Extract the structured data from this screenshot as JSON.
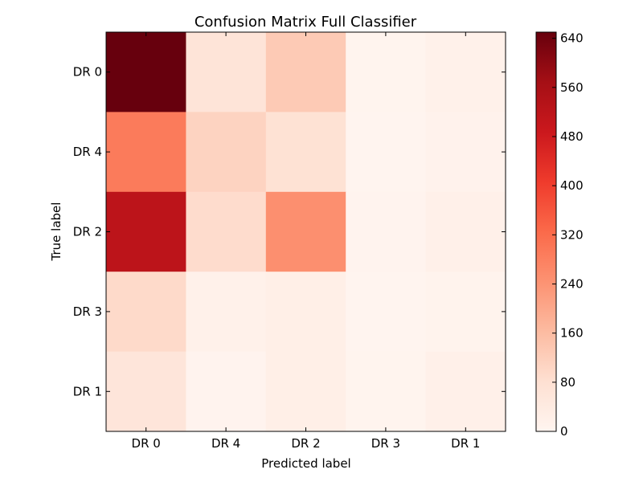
{
  "chart_data": {
    "type": "heatmap",
    "title": "Confusion Matrix Full Classifier",
    "xlabel": "Predicted label",
    "ylabel": "True label",
    "x_categories": [
      "DR 0",
      "DR 4",
      "DR 2",
      "DR 3",
      "DR 1"
    ],
    "y_categories": [
      "DR 0",
      "DR 4",
      "DR 2",
      "DR 3",
      "DR 1"
    ],
    "values": [
      [
        650,
        65,
        130,
        5,
        15
      ],
      [
        290,
        110,
        75,
        3,
        10
      ],
      [
        520,
        90,
        250,
        6,
        18
      ],
      [
        95,
        15,
        25,
        4,
        8
      ],
      [
        60,
        6,
        25,
        5,
        20
      ]
    ],
    "colorbar": {
      "min": 0,
      "max": 650,
      "ticks": [
        "0",
        "80",
        "160",
        "240",
        "320",
        "400",
        "480",
        "560",
        "640"
      ],
      "colormap": "Reds"
    }
  }
}
